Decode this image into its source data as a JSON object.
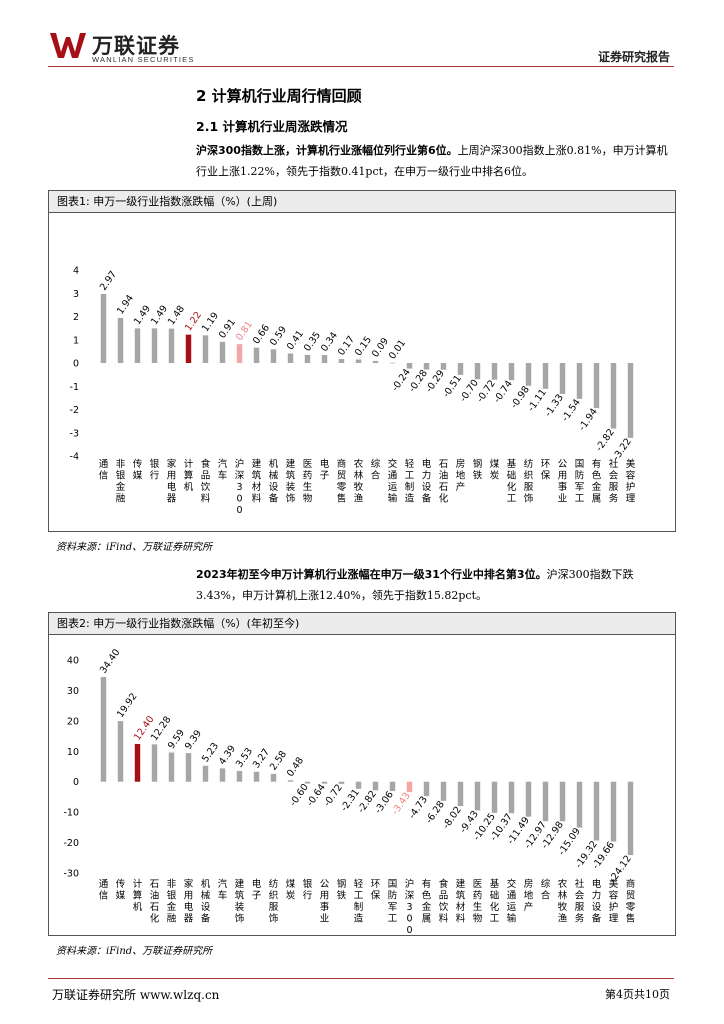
{
  "header": {
    "logo_cn": "万联证券",
    "logo_en": "WANLIAN SECURITIES",
    "report_type": "证券研究报告"
  },
  "section": {
    "h1": "2   计算机行业周行情回顾",
    "h2": "2.1  计算机行业周涨跌情况"
  },
  "para1": {
    "bold": "沪深300指数上涨，计算机行业涨幅位列行业第6位。",
    "text": "上周沪深300指数上涨0.81%，申万计算机行业上涨1.22%，领先于指数0.41pct，在申万一级行业中排名6位。"
  },
  "para2": {
    "bold": "2023年初至今申万计算机行业涨幅在申万一级31个行业中排名第3位。",
    "text": "沪深300指数下跌3.43%，申万计算机上涨12.40%，领先于指数15.82pct。"
  },
  "figure1": {
    "title": "图表1:  申万一级行业指数涨跌幅（%）(上周)",
    "source": "资料来源：iFind、万联证券研究所"
  },
  "figure2": {
    "title": "图表2:  申万一级行业指数涨跌幅（%）(年初至今)",
    "source": "资料来源：iFind、万联证券研究所"
  },
  "footer": {
    "left": "万联证券研究所 www.wlzq.cn",
    "right": "第4页共10页"
  },
  "colors": {
    "bar": "#a6a6a6",
    "highlight": "#a50f15",
    "index": "#f4a6a6",
    "rule": "#a33333"
  },
  "chart_data": [
    {
      "type": "bar",
      "title": "申万一级行业指数涨跌幅（%）(上周)",
      "ylim": [
        -4,
        4
      ],
      "yticks": [
        -4,
        -3,
        -2,
        -1,
        0,
        1,
        2,
        3,
        4
      ],
      "categories": [
        "通信",
        "非银金融",
        "传媒",
        "银行",
        "家用电器",
        "计算机",
        "食品饮料",
        "汽车",
        "沪深300",
        "建筑材料",
        "机械设备",
        "建筑装饰",
        "医药生物",
        "电子",
        "商贸零售",
        "农林牧渔",
        "综合",
        "交通运输",
        "轻工制造",
        "电力设备",
        "石油石化",
        "房地产",
        "钢铁",
        "煤炭",
        "基础化工",
        "纺织服饰",
        "环保",
        "公用事业",
        "国防军工",
        "有色金属",
        "社会服务",
        "美容护理"
      ],
      "values": [
        2.97,
        1.94,
        1.49,
        1.49,
        1.48,
        1.22,
        1.19,
        0.91,
        0.81,
        0.66,
        0.59,
        0.41,
        0.35,
        0.34,
        0.17,
        0.15,
        0.09,
        0.01,
        -0.24,
        -0.28,
        -0.29,
        -0.51,
        -0.7,
        -0.72,
        -0.74,
        -0.98,
        -1.11,
        -1.33,
        -1.54,
        -1.94,
        -2.82,
        -3.22
      ],
      "labels": [
        "2.97",
        "1.94",
        "1.49",
        "1.49",
        "1.48",
        "1.22",
        "1.19",
        "0.91",
        "0.81",
        "0.66",
        "0.59",
        "0.41",
        "0.35",
        "0.34",
        "0.17",
        "0.15",
        "0.09",
        "0.01",
        "-0.24",
        "-0.28",
        "-0.29",
        "-0.51",
        "-0.70",
        "-0.72",
        "-0.74",
        "-0.98",
        "-1.11",
        "-1.33",
        "-1.54",
        "-1.94",
        "-2.82",
        "-3.22"
      ],
      "highlight_index": 5,
      "index_index": 8
    },
    {
      "type": "bar",
      "title": "申万一级行业指数涨跌幅（%）(年初至今)",
      "ylim": [
        -30,
        40
      ],
      "yticks": [
        -30,
        -20,
        -10,
        0,
        10,
        20,
        30,
        40
      ],
      "categories": [
        "通信",
        "传媒",
        "计算机",
        "石油石化",
        "非银金融",
        "家用电器",
        "机械设备",
        "汽车",
        "建筑装饰",
        "电子",
        "纺织服饰",
        "煤炭",
        "银行",
        "公用事业",
        "钢铁",
        "轻工制造",
        "环保",
        "国防军工",
        "沪深300",
        "有色金属",
        "食品饮料",
        "建筑材料",
        "医药生物",
        "基础化工",
        "交通运输",
        "房地产",
        "综合",
        "农林牧渔",
        "社会服务",
        "电力设备",
        "美容护理",
        "商贸零售"
      ],
      "values": [
        34.4,
        19.92,
        12.4,
        12.28,
        9.59,
        9.39,
        5.23,
        4.39,
        3.53,
        3.27,
        2.58,
        0.48,
        -0.6,
        -0.64,
        -0.72,
        -2.31,
        -2.82,
        -3.06,
        -3.43,
        -4.73,
        -6.28,
        -8.02,
        -9.43,
        -10.25,
        -10.37,
        -11.49,
        -12.97,
        -12.98,
        -15.09,
        -19.32,
        -19.66,
        -24.12
      ],
      "labels": [
        "34.40",
        "19.92",
        "12.40",
        "12.28",
        "9.59",
        "9.39",
        "5.23",
        "4.39",
        "3.53",
        "3.27",
        "2.58",
        "0.48",
        "-0.60",
        "-0.64",
        "-0.72",
        "-2.31",
        "-2.82",
        "-3.06",
        "-3.43",
        "-4.73",
        "-6.28",
        "-8.02",
        "-9.43",
        "-10.25",
        "-10.37",
        "-11.49",
        "-12.97",
        "-12.98",
        "-15.09",
        "-19.32",
        "-19.66",
        "-24.12"
      ],
      "highlight_index": 2,
      "index_index": 18
    }
  ]
}
